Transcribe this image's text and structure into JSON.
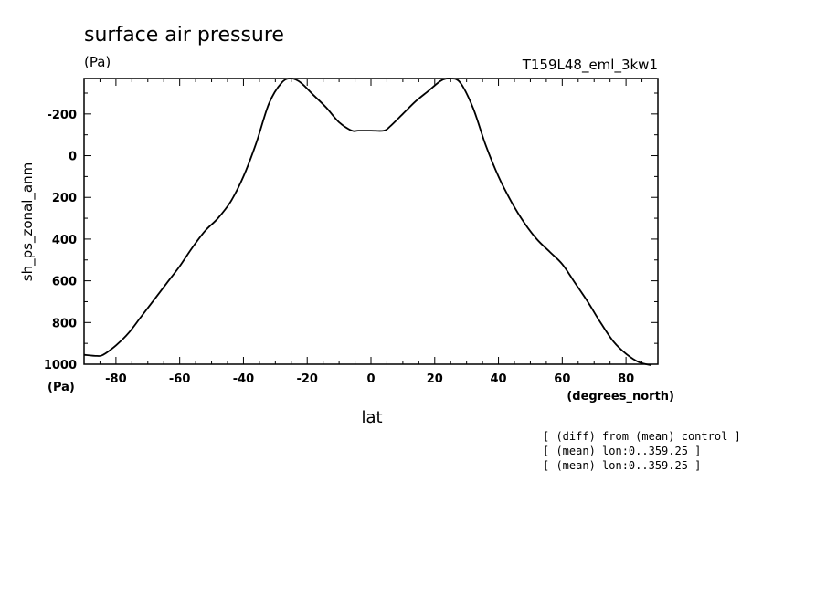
{
  "chart_data": {
    "type": "line",
    "title": "surface air pressure",
    "units_label": "(Pa)",
    "run_label": "T159L48_eml_3kw1",
    "ylabel": "sh_ps_zonal_anm",
    "y_units": "(Pa)",
    "xlabel": "lat",
    "x_units": "(degrees_north)",
    "xlim": [
      -90,
      90
    ],
    "ylim": [
      1000,
      -370
    ],
    "y_axis_reversed": true,
    "x_ticks": [
      "-80",
      "-60",
      "-40",
      "-20",
      "0",
      "20",
      "40",
      "60",
      "80"
    ],
    "y_ticks": [
      "-200",
      "0",
      "200",
      "400",
      "600",
      "800",
      "1000"
    ],
    "notes": [
      "[ (diff) from (mean) control ]",
      "[ (mean) lon:0..359.25 ]",
      "[ (mean) lon:0..359.25 ]"
    ],
    "series": [
      {
        "x": [
          -90,
          -86,
          -84,
          -80,
          -76,
          -72,
          -68,
          -64,
          -60,
          -56,
          -52,
          -48,
          -44,
          -40,
          -36,
          -32,
          -28,
          -25,
          -22,
          -18,
          -14,
          -10,
          -6,
          -4,
          0,
          4,
          6,
          10,
          14,
          18,
          22,
          25,
          28,
          32,
          36,
          40,
          44,
          48,
          52,
          56,
          60,
          64,
          68,
          72,
          76,
          80,
          84,
          88
        ],
        "y": [
          955,
          960,
          955,
          910,
          850,
          770,
          690,
          610,
          530,
          440,
          360,
          300,
          220,
          100,
          -60,
          -250,
          -350,
          -370,
          -350,
          -290,
          -230,
          -160,
          -120,
          -120,
          -120,
          -120,
          -140,
          -200,
          -260,
          -310,
          -360,
          -370,
          -350,
          -230,
          -50,
          100,
          220,
          320,
          400,
          460,
          520,
          610,
          700,
          800,
          890,
          950,
          990,
          1005
        ]
      }
    ]
  }
}
